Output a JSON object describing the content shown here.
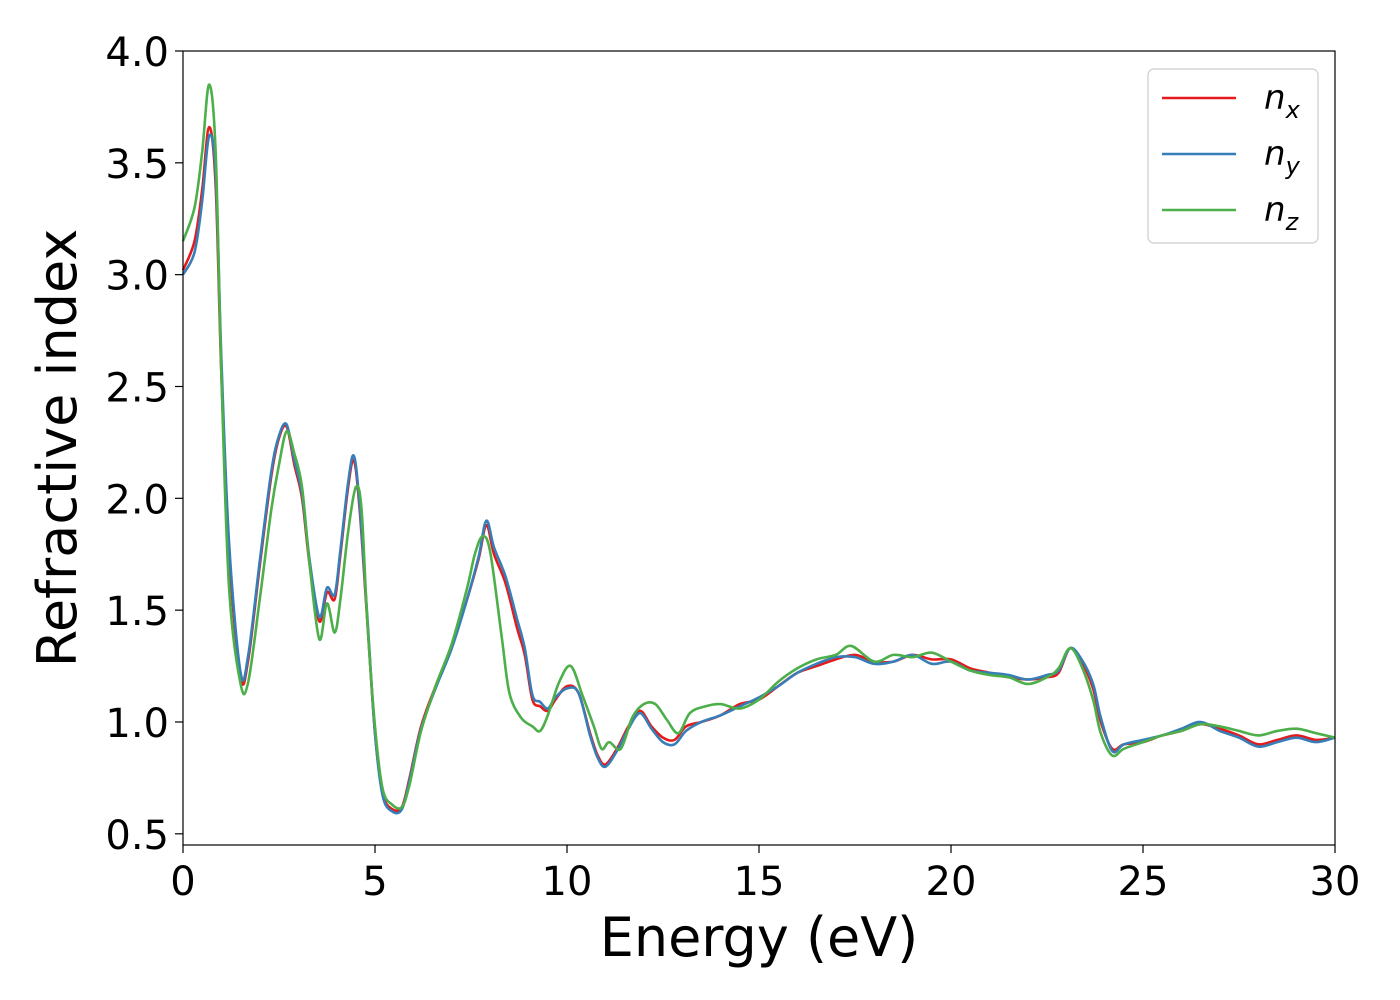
{
  "chart_data": {
    "type": "line",
    "title": "",
    "xlabel": "Energy (eV)",
    "ylabel": "Refractive index",
    "xlim": [
      0,
      30
    ],
    "ylim": [
      0.45,
      4.0
    ],
    "xticks": [
      0,
      5,
      10,
      15,
      20,
      25,
      30
    ],
    "xtick_labels": [
      "0",
      "5",
      "10",
      "15",
      "20",
      "25",
      "30"
    ],
    "yticks": [
      0.5,
      1.0,
      1.5,
      2.0,
      2.5,
      3.0,
      3.5,
      4.0
    ],
    "ytick_labels": [
      "0.5",
      "1.0",
      "1.5",
      "2.0",
      "2.5",
      "3.0",
      "3.5",
      "4.0"
    ],
    "grid": false,
    "legend_position": "top-right",
    "series": [
      {
        "name": "n_x",
        "label_base": "n",
        "label_sub": "x",
        "color": "#e41a1c",
        "x": [
          0,
          0.3,
          0.5,
          0.68,
          0.85,
          1.0,
          1.2,
          1.5,
          1.7,
          2.0,
          2.3,
          2.5,
          2.7,
          2.9,
          3.1,
          3.3,
          3.55,
          3.75,
          3.95,
          4.1,
          4.3,
          4.45,
          4.6,
          4.8,
          5.0,
          5.2,
          5.45,
          5.7,
          5.9,
          6.2,
          6.6,
          7.0,
          7.4,
          7.7,
          7.9,
          8.1,
          8.4,
          8.7,
          8.9,
          9.1,
          9.3,
          9.5,
          9.7,
          10.0,
          10.3,
          10.6,
          10.8,
          11.0,
          11.3,
          11.6,
          11.9,
          12.2,
          12.5,
          12.8,
          13.1,
          13.5,
          14.0,
          14.5,
          15.0,
          15.5,
          16.0,
          16.5,
          17.0,
          17.5,
          18.0,
          18.5,
          19.0,
          19.5,
          20.0,
          20.5,
          21.0,
          21.5,
          22.0,
          22.5,
          22.8,
          23.1,
          23.4,
          23.7,
          23.9,
          24.2,
          24.5,
          25.0,
          25.5,
          26.0,
          26.5,
          27.0,
          27.5,
          28.0,
          28.5,
          29.0,
          29.5,
          30.0
        ],
        "y": [
          3.02,
          3.15,
          3.38,
          3.66,
          3.4,
          2.55,
          1.75,
          1.2,
          1.28,
          1.7,
          2.1,
          2.27,
          2.32,
          2.15,
          2.0,
          1.7,
          1.45,
          1.58,
          1.55,
          1.75,
          2.05,
          2.17,
          1.95,
          1.45,
          0.95,
          0.68,
          0.61,
          0.62,
          0.75,
          0.98,
          1.17,
          1.34,
          1.55,
          1.73,
          1.88,
          1.75,
          1.62,
          1.42,
          1.3,
          1.1,
          1.07,
          1.05,
          1.1,
          1.16,
          1.13,
          0.95,
          0.85,
          0.81,
          0.88,
          0.98,
          1.05,
          0.98,
          0.93,
          0.92,
          0.98,
          1.0,
          1.03,
          1.08,
          1.1,
          1.16,
          1.22,
          1.25,
          1.28,
          1.3,
          1.27,
          1.27,
          1.3,
          1.28,
          1.28,
          1.24,
          1.22,
          1.2,
          1.19,
          1.2,
          1.22,
          1.33,
          1.27,
          1.15,
          1.0,
          0.88,
          0.9,
          0.91,
          0.94,
          0.96,
          0.99,
          0.97,
          0.94,
          0.9,
          0.92,
          0.94,
          0.92,
          0.93
        ]
      },
      {
        "name": "n_y",
        "label_base": "n",
        "label_sub": "y",
        "color": "#377eb8",
        "x": [
          0,
          0.3,
          0.5,
          0.68,
          0.85,
          1.0,
          1.2,
          1.5,
          1.7,
          2.0,
          2.3,
          2.5,
          2.7,
          2.9,
          3.1,
          3.3,
          3.55,
          3.75,
          3.95,
          4.1,
          4.3,
          4.45,
          4.6,
          4.8,
          5.0,
          5.2,
          5.45,
          5.7,
          5.9,
          6.2,
          6.6,
          7.0,
          7.4,
          7.7,
          7.9,
          8.1,
          8.4,
          8.7,
          8.9,
          9.1,
          9.3,
          9.5,
          9.7,
          10.0,
          10.3,
          10.6,
          10.8,
          11.0,
          11.3,
          11.6,
          11.9,
          12.2,
          12.5,
          12.8,
          13.1,
          13.5,
          14.0,
          14.5,
          15.0,
          15.5,
          16.0,
          16.5,
          17.0,
          17.5,
          18.0,
          18.5,
          19.0,
          19.5,
          20.0,
          20.5,
          21.0,
          21.5,
          22.0,
          22.5,
          22.8,
          23.1,
          23.4,
          23.7,
          23.9,
          24.2,
          24.5,
          25.0,
          25.5,
          26.0,
          26.5,
          27.0,
          27.5,
          28.0,
          28.5,
          29.0,
          29.5,
          30.0
        ],
        "y": [
          3.0,
          3.1,
          3.33,
          3.62,
          3.45,
          2.62,
          1.8,
          1.22,
          1.3,
          1.72,
          2.12,
          2.28,
          2.33,
          2.17,
          2.02,
          1.72,
          1.47,
          1.6,
          1.57,
          1.77,
          2.07,
          2.19,
          1.97,
          1.47,
          0.95,
          0.67,
          0.6,
          0.61,
          0.74,
          0.97,
          1.16,
          1.33,
          1.55,
          1.74,
          1.9,
          1.78,
          1.65,
          1.46,
          1.33,
          1.12,
          1.09,
          1.06,
          1.11,
          1.15,
          1.13,
          0.94,
          0.84,
          0.8,
          0.87,
          0.97,
          1.04,
          0.97,
          0.91,
          0.9,
          0.96,
          1.0,
          1.03,
          1.07,
          1.11,
          1.16,
          1.22,
          1.26,
          1.29,
          1.29,
          1.26,
          1.27,
          1.3,
          1.26,
          1.27,
          1.23,
          1.22,
          1.21,
          1.19,
          1.21,
          1.23,
          1.33,
          1.28,
          1.17,
          1.02,
          0.87,
          0.9,
          0.92,
          0.94,
          0.97,
          1.0,
          0.96,
          0.93,
          0.89,
          0.91,
          0.93,
          0.91,
          0.93
        ]
      },
      {
        "name": "n_z",
        "label_base": "n",
        "label_sub": "z",
        "color": "#4daf4a",
        "x": [
          0,
          0.3,
          0.5,
          0.68,
          0.85,
          1.0,
          1.2,
          1.5,
          1.7,
          2.0,
          2.3,
          2.5,
          2.7,
          2.9,
          3.1,
          3.3,
          3.55,
          3.75,
          3.95,
          4.1,
          4.3,
          4.5,
          4.65,
          4.8,
          5.0,
          5.2,
          5.45,
          5.7,
          5.9,
          6.2,
          6.6,
          7.0,
          7.4,
          7.6,
          7.8,
          8.0,
          8.3,
          8.5,
          8.8,
          9.1,
          9.3,
          9.5,
          9.8,
          10.1,
          10.4,
          10.7,
          10.9,
          11.1,
          11.4,
          11.7,
          12.0,
          12.3,
          12.6,
          12.9,
          13.2,
          13.6,
          14.0,
          14.5,
          15.0,
          15.5,
          16.0,
          16.5,
          17.0,
          17.4,
          18.0,
          18.5,
          19.0,
          19.5,
          20.0,
          20.5,
          21.0,
          21.5,
          22.0,
          22.5,
          22.8,
          23.1,
          23.4,
          23.7,
          23.9,
          24.2,
          24.5,
          25.0,
          25.5,
          26.0,
          26.5,
          27.0,
          27.5,
          28.0,
          28.5,
          29.0,
          29.5,
          30.0
        ],
        "y": [
          3.15,
          3.3,
          3.55,
          3.85,
          3.55,
          2.55,
          1.6,
          1.17,
          1.18,
          1.55,
          1.95,
          2.15,
          2.3,
          2.2,
          2.05,
          1.7,
          1.37,
          1.53,
          1.4,
          1.55,
          1.85,
          2.05,
          1.95,
          1.45,
          0.98,
          0.7,
          0.63,
          0.62,
          0.72,
          0.96,
          1.17,
          1.35,
          1.6,
          1.75,
          1.83,
          1.76,
          1.38,
          1.13,
          1.02,
          0.98,
          0.96,
          1.03,
          1.18,
          1.25,
          1.12,
          0.98,
          0.88,
          0.91,
          0.88,
          1.02,
          1.08,
          1.08,
          1.01,
          0.95,
          1.04,
          1.07,
          1.08,
          1.06,
          1.1,
          1.18,
          1.24,
          1.28,
          1.3,
          1.34,
          1.27,
          1.3,
          1.29,
          1.31,
          1.27,
          1.23,
          1.21,
          1.2,
          1.17,
          1.2,
          1.24,
          1.33,
          1.25,
          1.1,
          0.95,
          0.85,
          0.88,
          0.91,
          0.94,
          0.96,
          0.99,
          0.98,
          0.96,
          0.94,
          0.96,
          0.97,
          0.95,
          0.93
        ]
      }
    ]
  }
}
